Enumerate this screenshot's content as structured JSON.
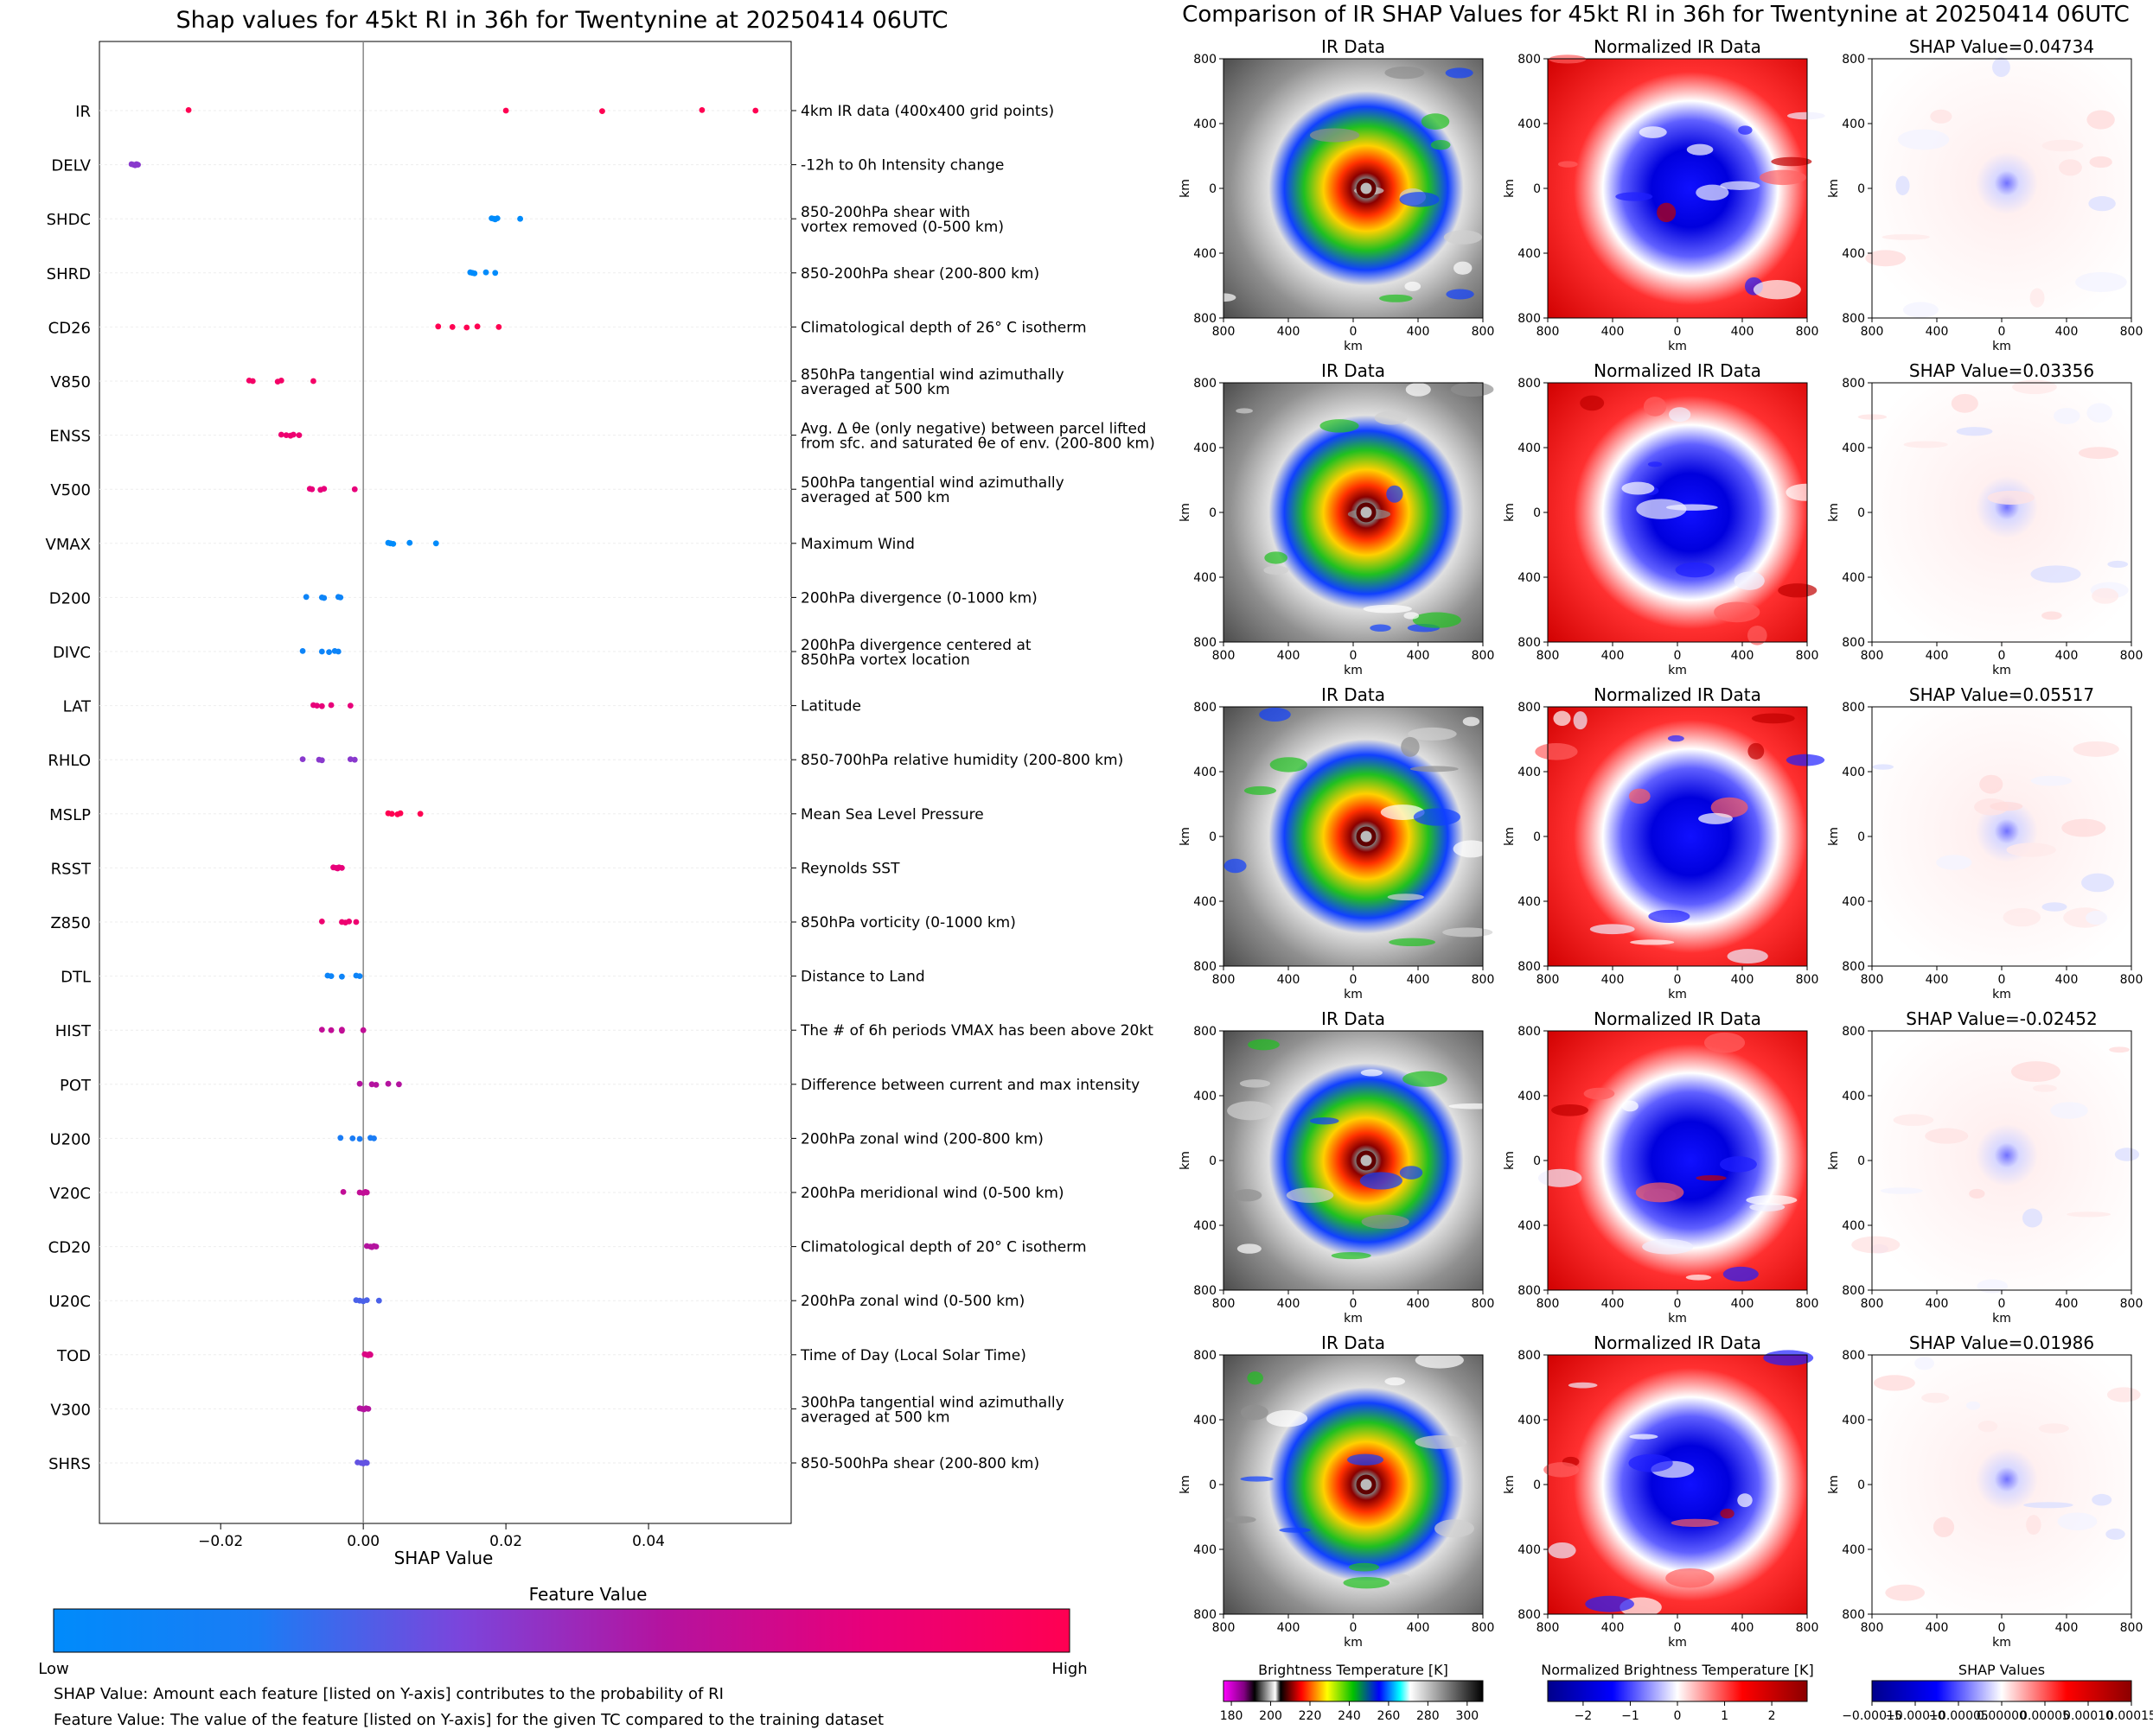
{
  "chart_data": [
    {
      "type": "scatter",
      "title": "Shap values for 45kt RI in 36h for Twentynine at 20250414 06UTC",
      "xlabel": "SHAP Value",
      "xlim": [
        -0.037,
        0.06
      ],
      "xticks": [
        -0.02,
        0.0,
        0.02,
        0.04
      ],
      "xtick_labels": [
        "−0.02",
        "0.00",
        "0.02",
        "0.04"
      ],
      "features": [
        {
          "code": "IR",
          "desc": "4km IR data (400x400 grid points)",
          "points": [
            [
              -0.0245,
              1.0
            ],
            [
              0.02,
              1.0
            ],
            [
              0.0335,
              1.0
            ],
            [
              0.0475,
              1.0
            ],
            [
              0.055,
              1.0
            ]
          ]
        },
        {
          "code": "DELV",
          "desc": "-12h to 0h Intensity change",
          "points": [
            [
              -0.0325,
              0.45
            ],
            [
              -0.0322,
              0.45
            ],
            [
              -0.032,
              0.45
            ],
            [
              -0.0318,
              0.45
            ],
            [
              -0.0316,
              0.45
            ]
          ]
        },
        {
          "code": "SHDC",
          "desc": "850-200hPa shear with\nvortex removed (0-500 km)",
          "points": [
            [
              0.018,
              0.0
            ],
            [
              0.0183,
              0.0
            ],
            [
              0.0185,
              0.0
            ],
            [
              0.0188,
              0.0
            ],
            [
              0.022,
              0.0
            ]
          ]
        },
        {
          "code": "SHRD",
          "desc": "850-200hPa shear (200-800 km)",
          "points": [
            [
              0.015,
              0.0
            ],
            [
              0.0153,
              0.0
            ],
            [
              0.0156,
              0.0
            ],
            [
              0.0172,
              0.0
            ],
            [
              0.0185,
              0.0
            ]
          ]
        },
        {
          "code": "CD26",
          "desc": "Climatological depth of 26° C isotherm",
          "points": [
            [
              0.0105,
              1.0
            ],
            [
              0.0125,
              1.0
            ],
            [
              0.0145,
              1.0
            ],
            [
              0.016,
              1.0
            ],
            [
              0.019,
              1.0
            ]
          ]
        },
        {
          "code": "V850",
          "desc": "850hPa tangential wind azimuthally\naveraged at 500 km",
          "points": [
            [
              -0.016,
              0.9
            ],
            [
              -0.0155,
              0.9
            ],
            [
              -0.012,
              0.9
            ],
            [
              -0.0115,
              0.9
            ],
            [
              -0.007,
              0.9
            ]
          ]
        },
        {
          "code": "ENSS",
          "desc": "Avg. Δ θe (only negative) between parcel lifted\nfrom sfc. and saturated θe of env. (200-800 km)",
          "points": [
            [
              -0.0115,
              0.85
            ],
            [
              -0.0108,
              0.85
            ],
            [
              -0.0102,
              0.85
            ],
            [
              -0.0098,
              0.85
            ],
            [
              -0.009,
              0.85
            ]
          ]
        },
        {
          "code": "V500",
          "desc": "500hPa tangential wind azimuthally\naveraged at 500 km",
          "points": [
            [
              -0.0075,
              0.8
            ],
            [
              -0.0072,
              0.8
            ],
            [
              -0.006,
              0.8
            ],
            [
              -0.0055,
              0.8
            ],
            [
              -0.0012,
              0.8
            ]
          ]
        },
        {
          "code": "VMAX",
          "desc": "Maximum Wind",
          "points": [
            [
              0.0035,
              0.0
            ],
            [
              0.0038,
              0.0
            ],
            [
              0.0042,
              0.0
            ],
            [
              0.0065,
              0.0
            ],
            [
              0.0102,
              0.0
            ]
          ]
        },
        {
          "code": "D200",
          "desc": "200hPa divergence (0-1000 km)",
          "points": [
            [
              -0.008,
              0.1
            ],
            [
              -0.0058,
              0.1
            ],
            [
              -0.0055,
              0.1
            ],
            [
              -0.0035,
              0.1
            ],
            [
              -0.0032,
              0.1
            ]
          ]
        },
        {
          "code": "DIVC",
          "desc": "200hPa divergence centered at\n850hPa vortex location",
          "points": [
            [
              -0.0085,
              0.1
            ],
            [
              -0.0058,
              0.1
            ],
            [
              -0.0048,
              0.1
            ],
            [
              -0.004,
              0.1
            ],
            [
              -0.0035,
              0.1
            ]
          ]
        },
        {
          "code": "LAT",
          "desc": "Latitude",
          "points": [
            [
              -0.007,
              0.8
            ],
            [
              -0.0065,
              0.8
            ],
            [
              -0.0058,
              0.8
            ],
            [
              -0.0045,
              0.8
            ],
            [
              -0.0018,
              0.8
            ]
          ]
        },
        {
          "code": "RHLO",
          "desc": "850-700hPa relative humidity (200-800 km)",
          "points": [
            [
              -0.0085,
              0.45
            ],
            [
              -0.0062,
              0.45
            ],
            [
              -0.0058,
              0.45
            ],
            [
              -0.0018,
              0.45
            ],
            [
              -0.0012,
              0.45
            ]
          ]
        },
        {
          "code": "MSLP",
          "desc": "Mean Sea Level Pressure",
          "points": [
            [
              0.0035,
              1.0
            ],
            [
              0.004,
              1.0
            ],
            [
              0.0048,
              1.0
            ],
            [
              0.0052,
              1.0
            ],
            [
              0.008,
              1.0
            ]
          ]
        },
        {
          "code": "RSST",
          "desc": "Reynolds SST",
          "points": [
            [
              -0.0042,
              0.8
            ],
            [
              -0.0038,
              0.8
            ],
            [
              -0.0036,
              0.8
            ],
            [
              -0.0034,
              0.8
            ],
            [
              -0.003,
              0.8
            ]
          ]
        },
        {
          "code": "Z850",
          "desc": "850hPa vorticity (0-1000 km)",
          "points": [
            [
              -0.0058,
              0.85
            ],
            [
              -0.003,
              0.85
            ],
            [
              -0.0025,
              0.85
            ],
            [
              -0.002,
              0.85
            ],
            [
              -0.001,
              0.85
            ]
          ]
        },
        {
          "code": "DTL",
          "desc": "Distance to Land",
          "points": [
            [
              -0.005,
              0.1
            ],
            [
              -0.0045,
              0.1
            ],
            [
              -0.003,
              0.1
            ],
            [
              -0.001,
              0.1
            ],
            [
              -0.0005,
              0.1
            ]
          ]
        },
        {
          "code": "HIST",
          "desc": "The # of 6h periods VMAX has been above 20kt",
          "points": [
            [
              -0.0058,
              0.65
            ],
            [
              -0.0045,
              0.65
            ],
            [
              -0.003,
              0.65
            ],
            [
              -0.003,
              0.65
            ],
            [
              0.0,
              0.65
            ]
          ]
        },
        {
          "code": "POT",
          "desc": "Difference between current and max intensity",
          "points": [
            [
              -0.0005,
              0.6
            ],
            [
              0.0012,
              0.6
            ],
            [
              0.0018,
              0.6
            ],
            [
              0.0035,
              0.6
            ],
            [
              0.005,
              0.6
            ]
          ]
        },
        {
          "code": "U200",
          "desc": "200hPa zonal wind (200-800 km)",
          "points": [
            [
              -0.0032,
              0.2
            ],
            [
              -0.0015,
              0.2
            ],
            [
              -0.0005,
              0.2
            ],
            [
              0.001,
              0.2
            ],
            [
              0.0015,
              0.2
            ]
          ]
        },
        {
          "code": "V20C",
          "desc": "200hPa meridional wind (0-500 km)",
          "points": [
            [
              -0.0028,
              0.65
            ],
            [
              -0.0005,
              0.65
            ],
            [
              0.0,
              0.65
            ],
            [
              0.0003,
              0.65
            ],
            [
              0.0005,
              0.65
            ]
          ]
        },
        {
          "code": "CD20",
          "desc": "Climatological depth of 20° C isotherm",
          "points": [
            [
              0.0005,
              0.6
            ],
            [
              0.001,
              0.6
            ],
            [
              0.0012,
              0.6
            ],
            [
              0.0015,
              0.6
            ],
            [
              0.0018,
              0.6
            ]
          ]
        },
        {
          "code": "U20C",
          "desc": "200hPa zonal wind (0-500 km)",
          "points": [
            [
              -0.001,
              0.3
            ],
            [
              -0.0005,
              0.3
            ],
            [
              0.0,
              0.3
            ],
            [
              0.0005,
              0.3
            ],
            [
              0.0022,
              0.3
            ]
          ]
        },
        {
          "code": "TOD",
          "desc": "Time of Day (Local Solar Time)",
          "points": [
            [
              0.0002,
              0.75
            ],
            [
              0.0005,
              0.75
            ],
            [
              0.0007,
              0.75
            ],
            [
              0.0009,
              0.75
            ],
            [
              0.001,
              0.75
            ]
          ]
        },
        {
          "code": "V300",
          "desc": "300hPa tangential wind azimuthally\naveraged at 500 km",
          "points": [
            [
              -0.0005,
              0.6
            ],
            [
              -0.0002,
              0.6
            ],
            [
              0.0001,
              0.6
            ],
            [
              0.0004,
              0.6
            ],
            [
              0.0007,
              0.6
            ]
          ]
        },
        {
          "code": "SHRS",
          "desc": "850-500hPa shear (200-800 km)",
          "points": [
            [
              -0.0008,
              0.35
            ],
            [
              -0.0003,
              0.35
            ],
            [
              0.0,
              0.35
            ],
            [
              0.0003,
              0.35
            ],
            [
              0.0005,
              0.35
            ]
          ]
        }
      ],
      "colorbar": {
        "title": "Feature Value",
        "low_label": "Low",
        "high_label": "High",
        "stops": [
          "#008bfb",
          "#7b45dc",
          "#b4139f",
          "#ff0052"
        ]
      },
      "notes": [
        "SHAP Value: Amount each feature [listed on Y-axis] contributes to the probability of RI",
        "Feature Value: The value of the feature [listed on Y-axis] for the given TC compared to the training dataset"
      ]
    },
    {
      "type": "heatmap",
      "title": "Comparison of IR SHAP Values for 45kt RI in 36h for Twentynine at 20250414 06UTC",
      "columns": [
        "IR Data",
        "Normalized IR Data",
        ""
      ],
      "shap_values": [
        "SHAP Value=0.04734",
        "SHAP Value=0.03356",
        "SHAP Value=0.05517",
        "SHAP Value=-0.02452",
        "SHAP Value=0.01986"
      ],
      "axis_label": "km",
      "xtick_labels": [
        "800",
        "400",
        "0",
        "400",
        "800"
      ],
      "ytick_labels": [
        "800",
        "400",
        "0",
        "400",
        "800"
      ],
      "colorbars": [
        {
          "label": "Brightness Temperature [K]",
          "ticks": [
            "180",
            "200",
            "220",
            "240",
            "260",
            "280",
            "300"
          ]
        },
        {
          "label": "Normalized Brightness Temperature [K]",
          "ticks": [
            "−2",
            "−1",
            "0",
            "1",
            "2"
          ]
        },
        {
          "label": "SHAP Values",
          "ticks": [
            "−0.00015",
            "−0.00010",
            "−0.00005",
            "0.00000",
            "0.00005",
            "0.00010",
            "0.00015"
          ]
        }
      ]
    }
  ]
}
